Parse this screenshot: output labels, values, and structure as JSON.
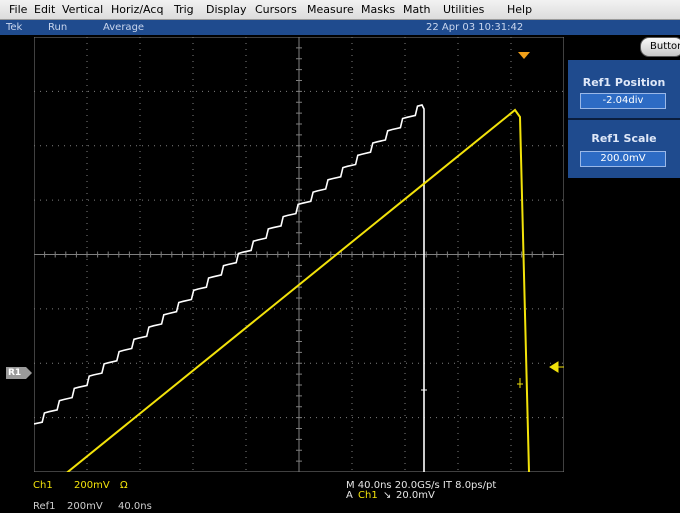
{
  "menu": {
    "items": [
      "File",
      "Edit",
      "Vertical",
      "Horiz/Acq",
      "Trig",
      "Display",
      "Cursors",
      "Measure",
      "Masks",
      "Math",
      "Utilities",
      "Help"
    ]
  },
  "status": {
    "brand": "Tek",
    "run_state": "Run",
    "acq_mode": "Average",
    "datetime": "22 Apr 03 10:31:42",
    "buttons_label": "Buttons"
  },
  "side_panel": {
    "ref1_position_title": "Ref1 Position",
    "ref1_position_value": "-2.04div",
    "ref1_scale_title": "Ref1 Scale",
    "ref1_scale_value": "200.0mV"
  },
  "ref_marker": "R1",
  "readouts": {
    "ch1_label": "Ch1",
    "ch1_scale": "200mV",
    "ch1_coupling": "Ω",
    "timebase": "M 40.0ns 20.0GS/s IT 8.0ps/pt",
    "trigger_a": "A",
    "trigger_source": "Ch1",
    "trigger_slope": "↘",
    "trigger_level": "20.0mV",
    "ref1_label": "Ref1",
    "ref1_scale": "200mV",
    "ref1_time": "40.0ns"
  },
  "colors": {
    "ch1": "#f2e20a",
    "ref1": "#ffffff",
    "graticule": "#7f7f7f",
    "trigger_marker": "#f2a019"
  }
}
